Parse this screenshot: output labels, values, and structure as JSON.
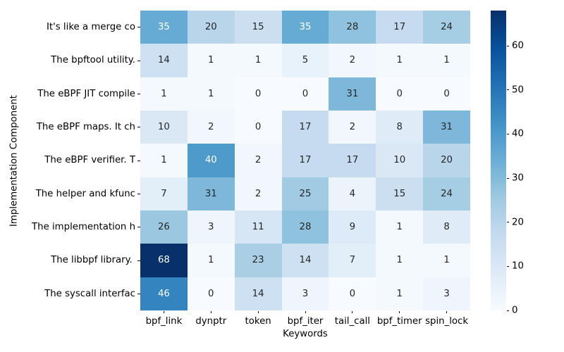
{
  "chart_data": {
    "type": "heatmap",
    "xlabel": "Keywords",
    "ylabel": "Implementation Component",
    "columns": [
      "bpf_link",
      "dynptr",
      "token",
      "bpf_iter",
      "tail_call",
      "bpf_timer",
      "spin_lock"
    ],
    "rows": [
      "It's like a merge co",
      "The bpftool utility.",
      "The eBPF JIT compile",
      "The eBPF maps. It ch",
      "The eBPF verifier. T",
      "The helper and kfunc",
      "The implementation h",
      "The libbpf library. ",
      "The syscall interfac"
    ],
    "values": [
      [
        35,
        20,
        15,
        35,
        28,
        17,
        24
      ],
      [
        14,
        1,
        1,
        5,
        2,
        1,
        1
      ],
      [
        1,
        1,
        0,
        0,
        31,
        0,
        0
      ],
      [
        10,
        2,
        0,
        17,
        2,
        8,
        31
      ],
      [
        1,
        40,
        2,
        17,
        17,
        10,
        20
      ],
      [
        7,
        31,
        2,
        25,
        4,
        15,
        24
      ],
      [
        26,
        3,
        11,
        28,
        9,
        1,
        8
      ],
      [
        68,
        1,
        23,
        14,
        7,
        1,
        1
      ],
      [
        46,
        0,
        14,
        3,
        0,
        1,
        3
      ]
    ],
    "colormap": "Blues",
    "vmin": 0,
    "vmax": 68,
    "colorbar_ticks": [
      0,
      10,
      20,
      30,
      40,
      50,
      60
    ],
    "annotation_colors": {
      "dark": "#262626",
      "light": "#ffffff"
    }
  }
}
